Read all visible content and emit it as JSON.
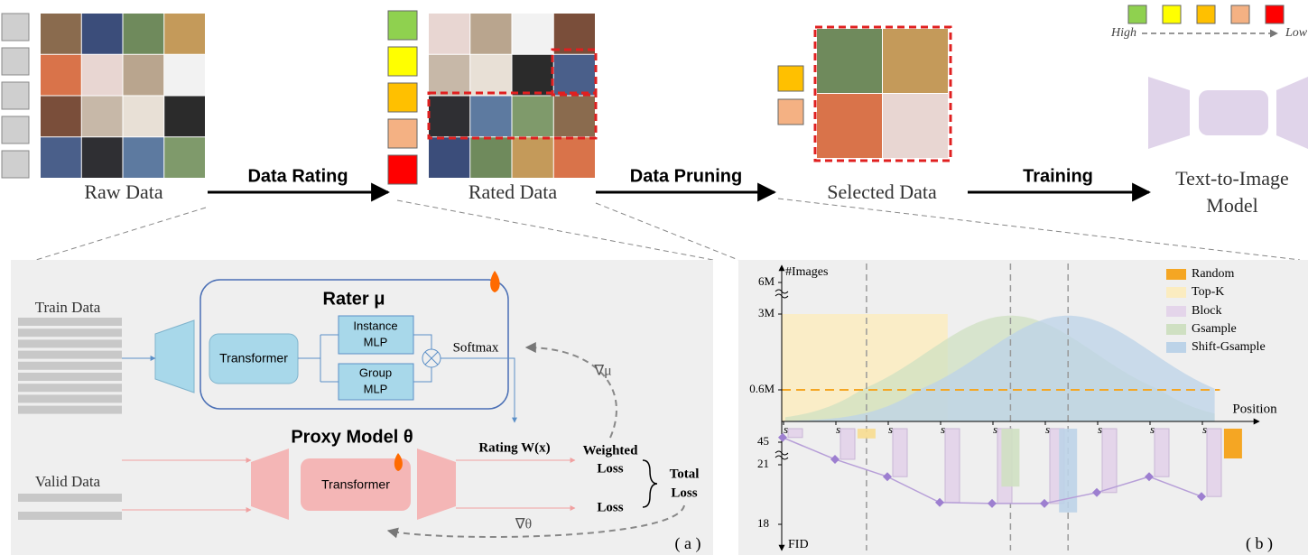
{
  "pipeline": {
    "stages": [
      "Raw Data",
      "Rated Data",
      "Selected Data"
    ],
    "model": [
      "Text-to-Image",
      "Model"
    ],
    "steps": [
      "Data Rating",
      "Data Pruning",
      "Training"
    ],
    "rating_legend": {
      "high": "High",
      "low": "Low",
      "colors": [
        "#8fd14f",
        "#ffff00",
        "#ffc000",
        "#f4b183",
        "#ff0000"
      ]
    }
  },
  "panel_a": {
    "train_data": "Train Data",
    "valid_data": "Valid Data",
    "rater": "Rater μ",
    "rater_transformer": "Transformer",
    "instance_mlp": [
      "Instance",
      "MLP"
    ],
    "group_mlp": [
      "Group",
      "MLP"
    ],
    "softmax": "Softmax",
    "proxy": "Proxy Model θ",
    "proxy_transformer": "Transformer",
    "rating": "Rating W(x)",
    "weighted_loss": [
      "Weighted",
      "Loss"
    ],
    "loss": "Loss",
    "total_loss": [
      "Total",
      "Loss"
    ],
    "grad_mu": "∇μ",
    "grad_theta": "∇θ",
    "label": "( a )"
  },
  "chart_data": {
    "type": "combo",
    "y_label": "#Images",
    "x_label": "Position",
    "y2_label": "FID",
    "panel_label": "( b )",
    "xlim": [
      0,
      90
    ],
    "xticks": [
      {
        "value": 0,
        "label": "s₀"
      },
      {
        "value": 10,
        "label": "s₁₀"
      },
      {
        "value": 20,
        "label": "s₂₀"
      },
      {
        "value": 30,
        "label": "s₃₀"
      },
      {
        "value": 40,
        "label": "s₄₀"
      },
      {
        "value": 50,
        "label": "s₅₀"
      },
      {
        "value": 60,
        "label": "s₆₀"
      },
      {
        "value": 70,
        "label": "s₇₀"
      },
      {
        "value": 80,
        "label": "s₈₀"
      }
    ],
    "yticks": [
      {
        "value": 6000000,
        "label": "6M"
      },
      {
        "value": 3000000,
        "label": "3M"
      },
      {
        "value": 600000,
        "label": "0.6M"
      }
    ],
    "y2ticks": [
      45,
      21,
      18
    ],
    "thresholds": [
      15.5,
      43,
      54
    ],
    "series": [
      {
        "name": "Random",
        "color": "#f5a623",
        "images": 600000,
        "span": [
          0,
          83
        ],
        "fid": 27.7,
        "fid_x": 85.5
      },
      {
        "name": "Top-K",
        "color": "#fbecc0",
        "images": 3000000,
        "span": [
          0,
          31
        ],
        "fid": 49,
        "fid_x": 15.5
      },
      {
        "name": "Block",
        "color": "#e4d5ea",
        "line_color": "#b79fd8",
        "x": [
          0,
          10,
          20,
          30,
          40,
          50,
          60,
          70,
          80
        ],
        "values": [
          50,
          26.8,
          20.4,
          19.1,
          19.05,
          19.05,
          19.6,
          20.4,
          19.4
        ]
      },
      {
        "name": "Gsample",
        "color": "#cfe0c2",
        "peak": 2950000,
        "mean": 43,
        "sd": 16,
        "fid": 19.9,
        "fid_x": 43
      },
      {
        "name": "Shift-Gsample",
        "color": "#bcd3e8",
        "peak": 2950000,
        "mean": 54,
        "sd": 16,
        "fid": 18.6,
        "fid_x": 54
      }
    ]
  }
}
